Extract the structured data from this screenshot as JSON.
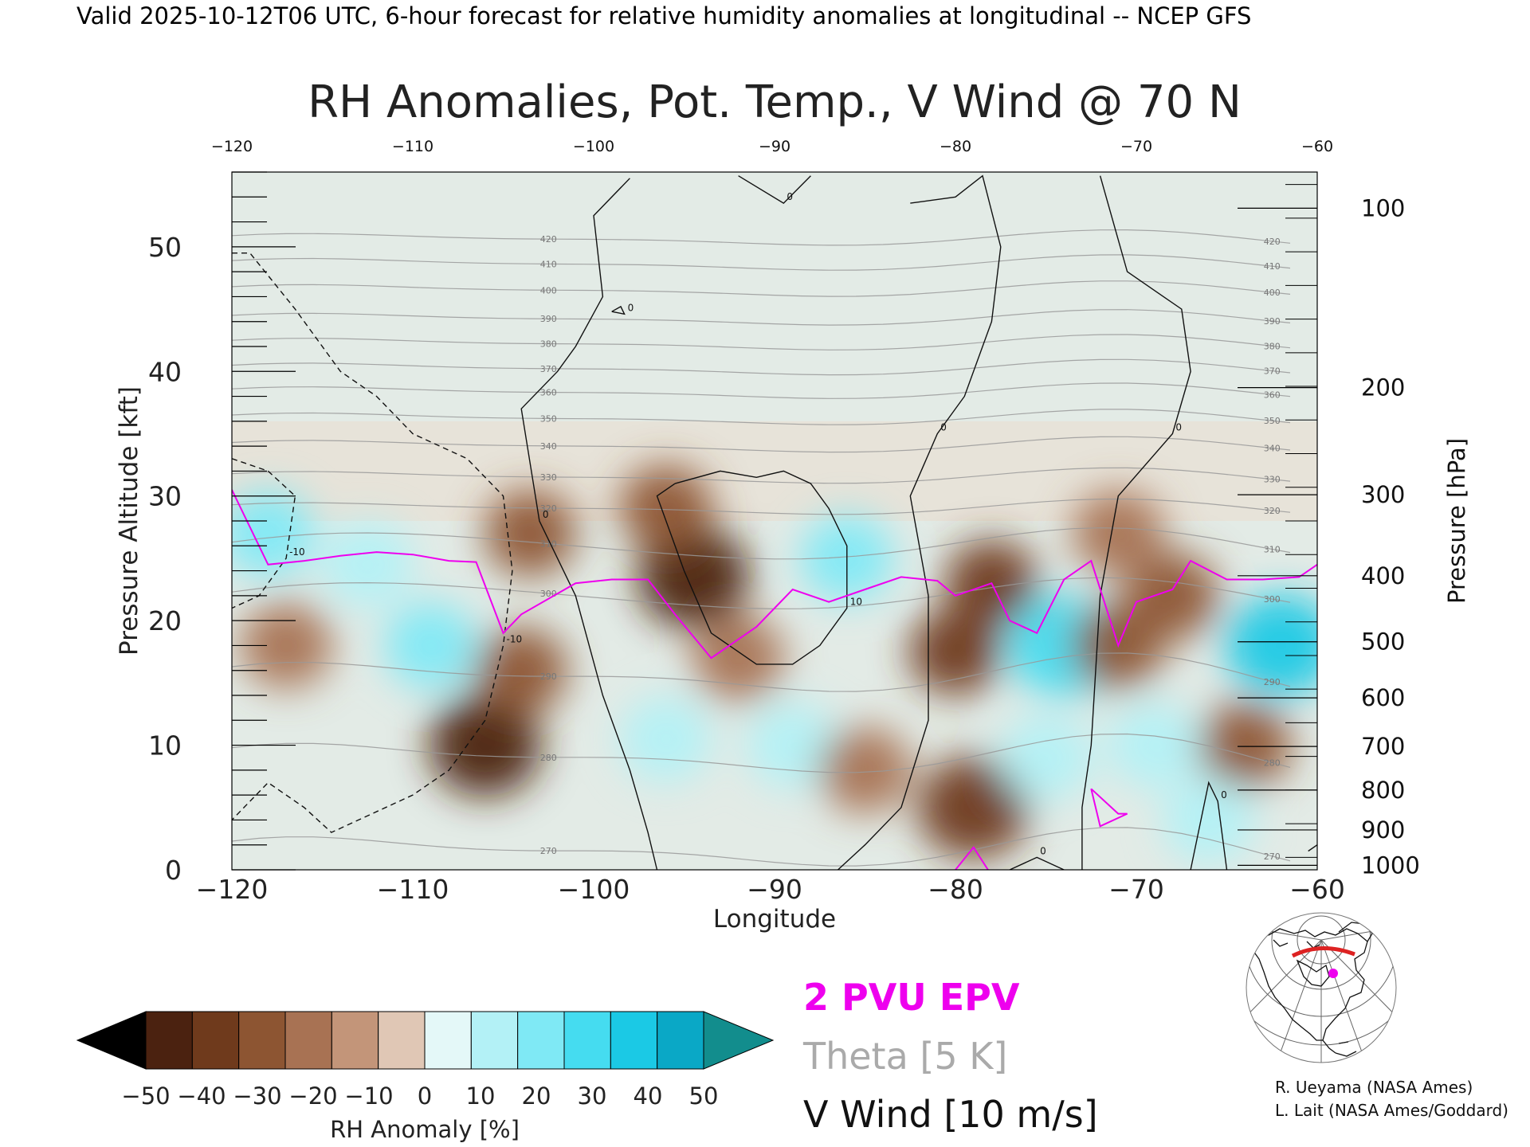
{
  "header": "Valid 2025-10-12T06 UTC, 6-hour forecast for relative humidity anomalies at longitudinal -- NCEP GFS",
  "colors": {
    "pv": "#ee00ee",
    "theta": "#999999",
    "wind": "#111111",
    "dry": "#8a5632",
    "moist": "#22d8ee"
  },
  "chart_data": {
    "type": "heatmap",
    "title": "RH Anomalies, Pot. Temp., V Wind @ 70 N",
    "xlabel": "Longitude",
    "ylabel": "Pressure Altitude [kft]",
    "ylabel_right": "Pressure [hPa]",
    "xlim": [
      -120,
      -60
    ],
    "ylim": [
      0,
      56
    ],
    "x_ticks": [
      -120,
      -110,
      -100,
      -90,
      -80,
      -70,
      -60
    ],
    "x_tick_labels": [
      "−120",
      "−110",
      "−100",
      "−90",
      "−80",
      "−70",
      "−60"
    ],
    "top_tick_labels": [
      "−120",
      "−110",
      "−100",
      "−90",
      "−80",
      "−70",
      "−60"
    ],
    "y_ticks": [
      0,
      10,
      20,
      30,
      40,
      50
    ],
    "y_tick_labels": [
      "0",
      "10",
      "20",
      "30",
      "40",
      "50"
    ],
    "pressure_ticks": [
      {
        "label": "100",
        "kft": 53.1
      },
      {
        "label": "200",
        "kft": 38.7
      },
      {
        "label": "300",
        "kft": 30.1
      },
      {
        "label": "400",
        "kft": 23.6
      },
      {
        "label": "500",
        "kft": 18.3
      },
      {
        "label": "600",
        "kft": 13.8
      },
      {
        "label": "700",
        "kft": 9.9
      },
      {
        "label": "800",
        "kft": 6.4
      },
      {
        "label": "900",
        "kft": 3.2
      },
      {
        "label": "1000",
        "kft": 0.36
      }
    ],
    "rh_anomaly_centers": [
      {
        "lon": -117,
        "kft": 18,
        "value": -18
      },
      {
        "lon": -112.5,
        "kft": 24.5,
        "value": 18
      },
      {
        "lon": -118,
        "kft": 27,
        "value": 20
      },
      {
        "lon": -109,
        "kft": 18,
        "value": 25
      },
      {
        "lon": -106,
        "kft": 10,
        "value": -42
      },
      {
        "lon": -104,
        "kft": 16,
        "value": -28
      },
      {
        "lon": -103.5,
        "kft": 27,
        "value": -22
      },
      {
        "lon": -94.5,
        "kft": 23.5,
        "value": -45
      },
      {
        "lon": -96,
        "kft": 29,
        "value": -22
      },
      {
        "lon": -92,
        "kft": 17,
        "value": -15
      },
      {
        "lon": -96,
        "kft": 10.5,
        "value": 18
      },
      {
        "lon": -89,
        "kft": 10,
        "value": 15
      },
      {
        "lon": -86,
        "kft": 25,
        "value": 28
      },
      {
        "lon": -80,
        "kft": 17.5,
        "value": -32
      },
      {
        "lon": -78,
        "kft": 23,
        "value": -35
      },
      {
        "lon": -79,
        "kft": 5,
        "value": -40
      },
      {
        "lon": -85,
        "kft": 8,
        "value": -18
      },
      {
        "lon": -74,
        "kft": 18,
        "value": 38
      },
      {
        "lon": -75,
        "kft": 9,
        "value": 18
      },
      {
        "lon": -71,
        "kft": 18,
        "value": -28
      },
      {
        "lon": -68,
        "kft": 22,
        "value": -22
      },
      {
        "lon": -71,
        "kft": 27,
        "value": -18
      },
      {
        "lon": -62,
        "kft": 18,
        "value": 48
      },
      {
        "lon": -64,
        "kft": 10,
        "value": -22
      },
      {
        "lon": -69,
        "kft": 10,
        "value": 15
      },
      {
        "lon": -66,
        "kft": 4,
        "value": 15
      }
    ],
    "pv_line": {
      "name": "2 PVU EPV",
      "lon": [
        -120,
        -118,
        -116,
        -114,
        -112,
        -110,
        -108,
        -106.5,
        -105,
        -104,
        -101,
        -99,
        -97,
        -95.5,
        -93.5,
        -91,
        -89,
        -87,
        -85,
        -83,
        -81,
        -80,
        -78,
        -77,
        -75.5,
        -74,
        -72.5,
        -71,
        -70,
        -68,
        -67,
        -65,
        -63,
        -61,
        -60
      ],
      "kft": [
        30.5,
        24.5,
        24.8,
        25.2,
        25.5,
        25.3,
        24.8,
        24.7,
        19.0,
        20.5,
        23,
        23.3,
        23.3,
        20.5,
        17,
        19.5,
        22.5,
        21.5,
        22.5,
        23.5,
        23.2,
        22,
        23,
        20,
        19,
        23.3,
        24.8,
        18,
        21.5,
        22.5,
        24.8,
        23.3,
        23.3,
        23.5,
        24.5
      ]
    },
    "pv_small": {
      "lon": [
        -72.5,
        -71,
        -70.5,
        -72,
        -72.5
      ],
      "kft": [
        6.5,
        4.5,
        4.5,
        3.5,
        6.5
      ]
    },
    "pv_sfc": {
      "lon": [
        -80,
        -79,
        -78.2
      ],
      "kft": [
        0.0,
        1.8,
        0.0
      ]
    },
    "theta_levels": [
      270,
      280,
      290,
      300,
      310,
      320,
      330,
      340,
      350,
      360,
      370,
      380,
      390,
      400,
      410,
      420
    ],
    "theta_lines": [
      {
        "theta": 270,
        "base_kft": 1.5
      },
      {
        "theta": 280,
        "base_kft": 9.0
      },
      {
        "theta": 290,
        "base_kft": 15.5
      },
      {
        "theta": 300,
        "base_kft": 22.0
      },
      {
        "theta": 310,
        "base_kft": 26.0
      },
      {
        "theta": 320,
        "base_kft": 29.0
      },
      {
        "theta": 330,
        "base_kft": 31.5
      },
      {
        "theta": 340,
        "base_kft": 34.0
      },
      {
        "theta": 350,
        "base_kft": 36.2
      },
      {
        "theta": 360,
        "base_kft": 38.3
      },
      {
        "theta": 370,
        "base_kft": 40.2
      },
      {
        "theta": 380,
        "base_kft": 42.2
      },
      {
        "theta": 390,
        "base_kft": 44.2
      },
      {
        "theta": 400,
        "base_kft": 46.5
      },
      {
        "theta": 410,
        "base_kft": 48.6
      },
      {
        "theta": 420,
        "base_kft": 50.6
      }
    ],
    "wind_contours": [
      {
        "value": 0,
        "dashed": false,
        "lon": [
          -98,
          -100,
          -99.5,
          -101,
          -102,
          -104,
          -103,
          -101,
          -99.5,
          -98,
          -97,
          -96.5
        ],
        "kft": [
          55.5,
          52.5,
          46,
          42,
          40,
          37,
          28,
          22,
          14,
          8,
          3,
          0
        ]
      },
      {
        "value": 0,
        "dashed": false,
        "lon": [
          -92,
          -89.5,
          -88
        ],
        "kft": [
          55.7,
          53.5,
          55.7
        ]
      },
      {
        "value": 0,
        "dashed": false,
        "lon": [
          -82.5,
          -80,
          -78.5,
          -77.5,
          -78,
          -79.5,
          -81,
          -82.5,
          -81.5,
          -81.5,
          -83,
          -85,
          -86.5
        ],
        "kft": [
          53.5,
          54,
          55.7,
          50,
          44,
          38,
          35,
          30,
          22,
          12,
          5,
          2,
          0
        ]
      },
      {
        "value": 0,
        "dashed": false,
        "lon": [
          -72,
          -70.5,
          -68.5,
          -67.5,
          -67,
          -68,
          -71,
          -72,
          -72.5,
          -73,
          -73
        ],
        "kft": [
          55.7,
          48,
          46,
          45,
          40,
          35,
          30,
          22,
          10,
          5,
          0
        ]
      },
      {
        "value": 0,
        "dashed": false,
        "lon": [
          -77,
          -75.5,
          -74
        ],
        "kft": [
          0,
          1,
          0
        ]
      },
      {
        "value": 0,
        "dashed": false,
        "lon": [
          -67,
          -66,
          -65.5,
          -65
        ],
        "kft": [
          0,
          7,
          5.5,
          0
        ]
      },
      {
        "value": 0,
        "dashed": false,
        "lon": [
          -99,
          -98.5,
          -98.3,
          -99
        ],
        "kft": [
          44.8,
          45.2,
          44.6,
          44.8
        ]
      },
      {
        "value": 0,
        "dashed": false,
        "lon": [
          -60.5,
          -60
        ],
        "kft": [
          1.5,
          2
        ]
      },
      {
        "value": 10,
        "dashed": false,
        "lon": [
          -95.5,
          -93,
          -91,
          -89.5,
          -88,
          -87,
          -86,
          -86,
          -87.5,
          -89,
          -91,
          -93.5,
          -95,
          -96.5,
          -95.5
        ],
        "kft": [
          31,
          32,
          31.5,
          32,
          31,
          29,
          26,
          21,
          18,
          16.5,
          16.5,
          19,
          24,
          30,
          31
        ]
      },
      {
        "value": -10,
        "dashed": true,
        "lon": [
          -120,
          -119,
          -116.5,
          -114,
          -112,
          -110,
          -107,
          -105,
          -104.5,
          -105,
          -106,
          -108,
          -110,
          -113,
          -114.5,
          -116,
          -118,
          -120
        ],
        "kft": [
          49.5,
          49.5,
          45,
          40,
          38,
          35,
          33,
          30,
          24,
          18,
          12,
          8,
          6,
          4,
          3,
          5,
          7,
          4
        ]
      },
      {
        "value": -10,
        "dashed": true,
        "lon": [
          -120,
          -118,
          -116.5,
          -117,
          -118.5,
          -120
        ],
        "kft": [
          33,
          32,
          30,
          25,
          22,
          21
        ]
      }
    ],
    "colorbar": {
      "label": "RH Anomaly [%]",
      "ticks": [
        "−50",
        "−40",
        "−30",
        "−20",
        "−10",
        "0",
        "10",
        "20",
        "30",
        "40",
        "50"
      ],
      "colors": [
        "#4b2210",
        "#6f3a1c",
        "#8d5532",
        "#a87253",
        "#c39579",
        "#e0c7b5",
        "#e4f8f8",
        "#b3f1f6",
        "#7fe9f5",
        "#45dcf0",
        "#1bc9e5",
        "#0aa8c6"
      ],
      "under_color": "#000000",
      "over_color": "#128d8d"
    },
    "legend": {
      "pv": "2 PVU EPV",
      "theta": "Theta [5 K]",
      "wind": "V Wind [10 m/s]"
    }
  },
  "credits": {
    "line1": "R. Ueyama (NASA Ames)",
    "line2": "L. Lait (NASA Ames/Goddard)"
  },
  "map_inset": {
    "icon": "north-america-locator-map",
    "marker_color": "#ee00ee",
    "path_color": "#dd2222"
  }
}
